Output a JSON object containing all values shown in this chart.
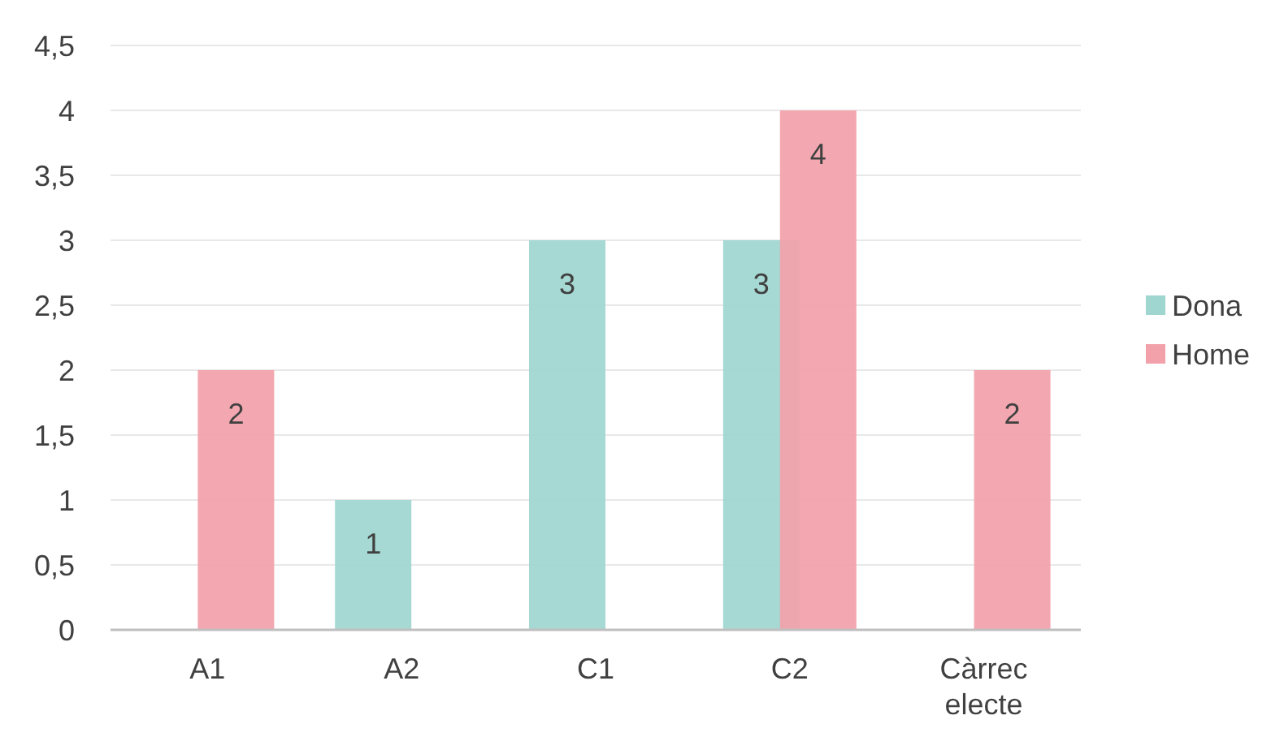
{
  "chart_data": {
    "type": "bar",
    "categories": [
      "A1",
      "A2",
      "C1",
      "C2",
      "Càrrec electe"
    ],
    "series": [
      {
        "name": "Dona",
        "color": "#9fd6d0",
        "values": [
          null,
          1,
          3,
          3,
          null
        ]
      },
      {
        "name": "Home",
        "color": "#f2a1ab",
        "values": [
          2,
          null,
          null,
          4,
          2
        ]
      }
    ],
    "ylim": [
      0,
      4.5
    ],
    "yticks": [
      0,
      {
        "value": 0.5,
        "label": "0,5"
      },
      1,
      {
        "value": 1.5,
        "label": "1,5"
      },
      2,
      {
        "value": 2.5,
        "label": "2,5"
      },
      3,
      {
        "value": 3.5,
        "label": "3,5"
      },
      4,
      {
        "value": 4.5,
        "label": "4,5"
      }
    ],
    "grid": "y",
    "legend": "right",
    "data_labels": true
  }
}
